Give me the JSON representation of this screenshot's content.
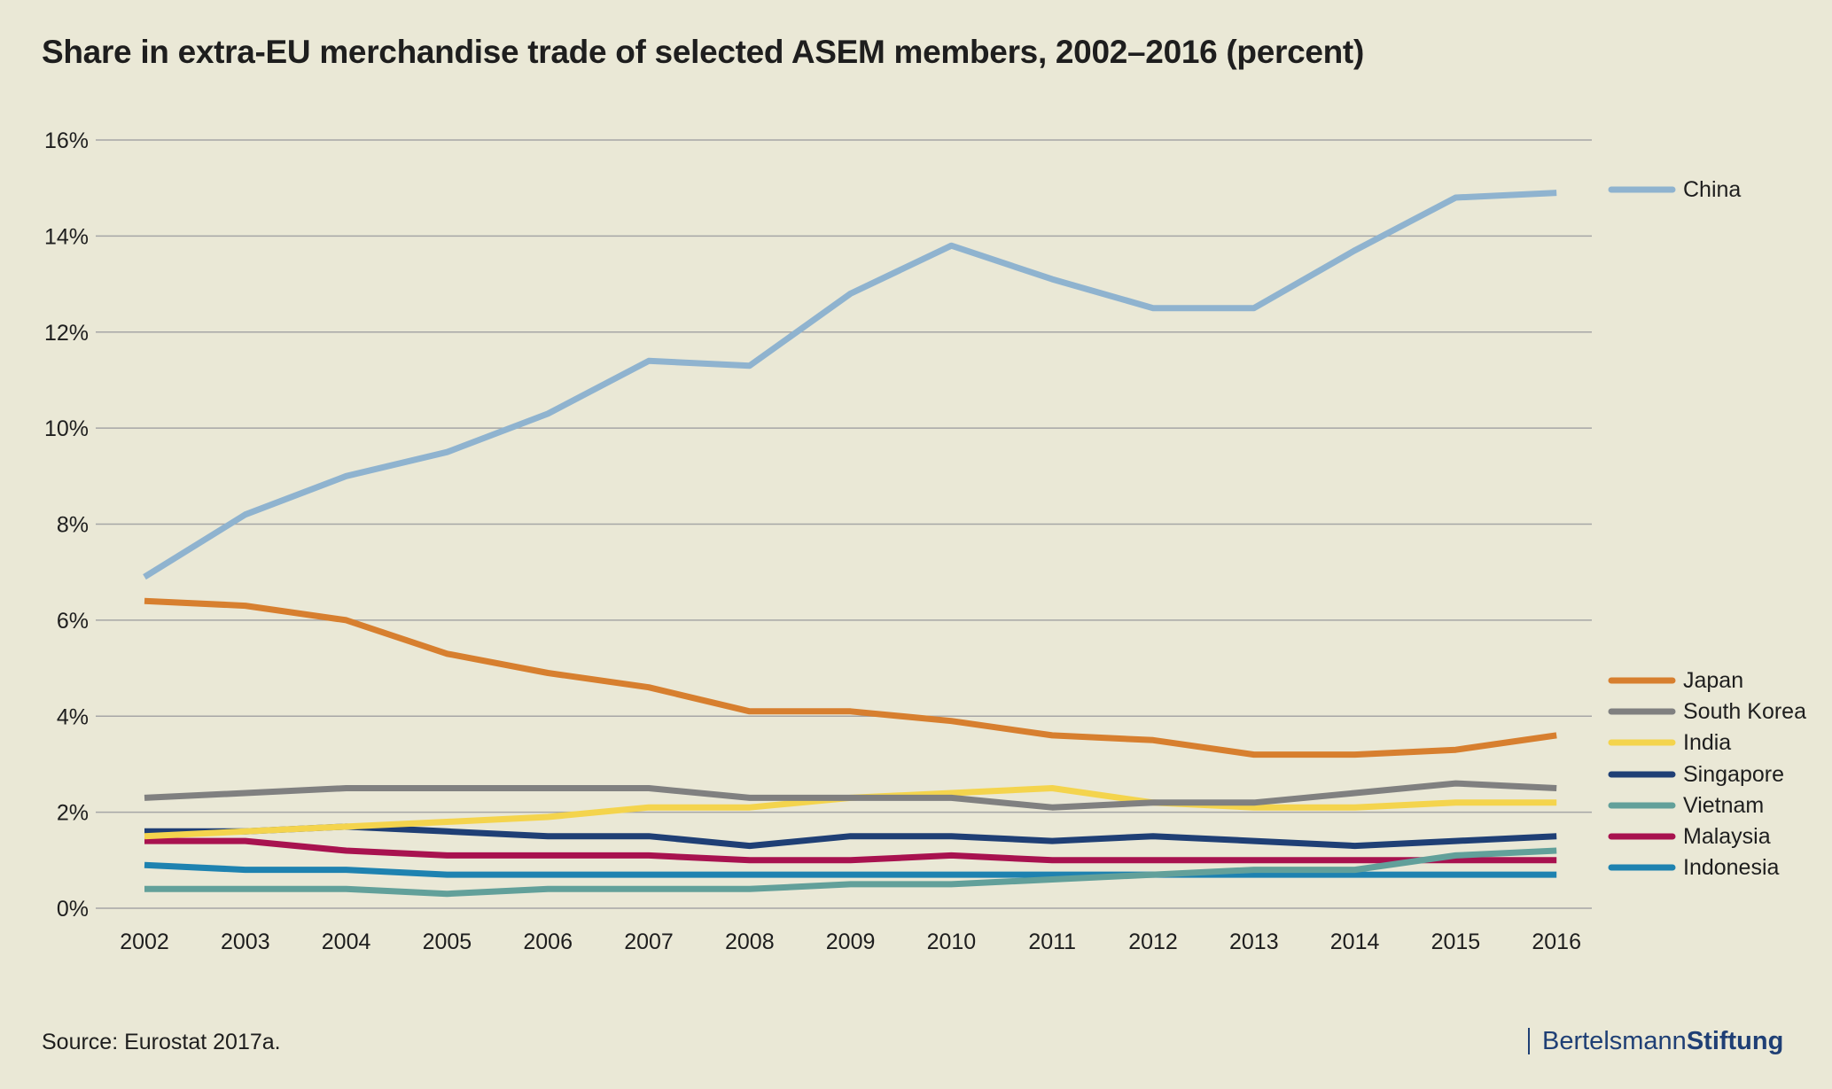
{
  "title": "Share in extra-EU merchandise trade of selected ASEM members, 2002–2016 (percent)",
  "source": "Source: Eurostat 2017a.",
  "brand": {
    "part1": "Bertelsmann",
    "part2": "Stiftung",
    "color": "#1f3f75"
  },
  "chart_data": {
    "type": "line",
    "title": "Share in extra-EU merchandise trade of selected ASEM members, 2002–2016 (percent)",
    "xlabel": "",
    "ylabel": "",
    "x": [
      "2002",
      "2003",
      "2004",
      "2005",
      "2006",
      "2007",
      "2008",
      "2009",
      "2010",
      "2011",
      "2012",
      "2013",
      "2014",
      "2015",
      "2016"
    ],
    "ylim": [
      0,
      16
    ],
    "yticks": [
      0,
      2,
      4,
      6,
      8,
      10,
      12,
      14,
      16
    ],
    "ytick_labels": [
      "0%",
      "2%",
      "4%",
      "6%",
      "8%",
      "10%",
      "12%",
      "14%",
      "16%"
    ],
    "grid": "horizontal",
    "legend_position": "right",
    "series": [
      {
        "name": "China",
        "color": "#8fb3cf",
        "values": [
          6.9,
          8.2,
          9.0,
          9.5,
          10.3,
          11.4,
          11.3,
          12.8,
          13.8,
          13.1,
          12.5,
          12.5,
          13.7,
          14.8,
          14.9
        ]
      },
      {
        "name": "Japan",
        "color": "#d77f2f",
        "values": [
          6.4,
          6.3,
          6.0,
          5.3,
          4.9,
          4.6,
          4.1,
          4.1,
          3.9,
          3.6,
          3.5,
          3.2,
          3.2,
          3.3,
          3.6
        ]
      },
      {
        "name": "South Korea",
        "color": "#808080",
        "values": [
          2.3,
          2.4,
          2.5,
          2.5,
          2.5,
          2.5,
          2.3,
          2.3,
          2.3,
          2.1,
          2.2,
          2.2,
          2.4,
          2.6,
          2.5
        ]
      },
      {
        "name": "India",
        "color": "#f4d44d",
        "values": [
          1.5,
          1.6,
          1.7,
          1.8,
          1.9,
          2.1,
          2.1,
          2.3,
          2.4,
          2.5,
          2.2,
          2.1,
          2.1,
          2.2,
          2.2
        ]
      },
      {
        "name": "Singapore",
        "color": "#1f3f75",
        "values": [
          1.6,
          1.6,
          1.7,
          1.6,
          1.5,
          1.5,
          1.3,
          1.5,
          1.5,
          1.4,
          1.5,
          1.4,
          1.3,
          1.4,
          1.5
        ]
      },
      {
        "name": "Vietnam",
        "color": "#62a09a",
        "values": [
          0.4,
          0.4,
          0.4,
          0.3,
          0.4,
          0.4,
          0.4,
          0.5,
          0.5,
          0.6,
          0.7,
          0.8,
          0.8,
          1.1,
          1.2
        ]
      },
      {
        "name": "Malaysia",
        "color": "#a8124f",
        "values": [
          1.4,
          1.4,
          1.2,
          1.1,
          1.1,
          1.1,
          1.0,
          1.0,
          1.1,
          1.0,
          1.0,
          1.0,
          1.0,
          1.0,
          1.0
        ]
      },
      {
        "name": "Indonesia",
        "color": "#1e82b0",
        "values": [
          0.9,
          0.8,
          0.8,
          0.7,
          0.7,
          0.7,
          0.7,
          0.7,
          0.7,
          0.7,
          0.7,
          0.7,
          0.7,
          0.7,
          0.7
        ]
      }
    ]
  }
}
